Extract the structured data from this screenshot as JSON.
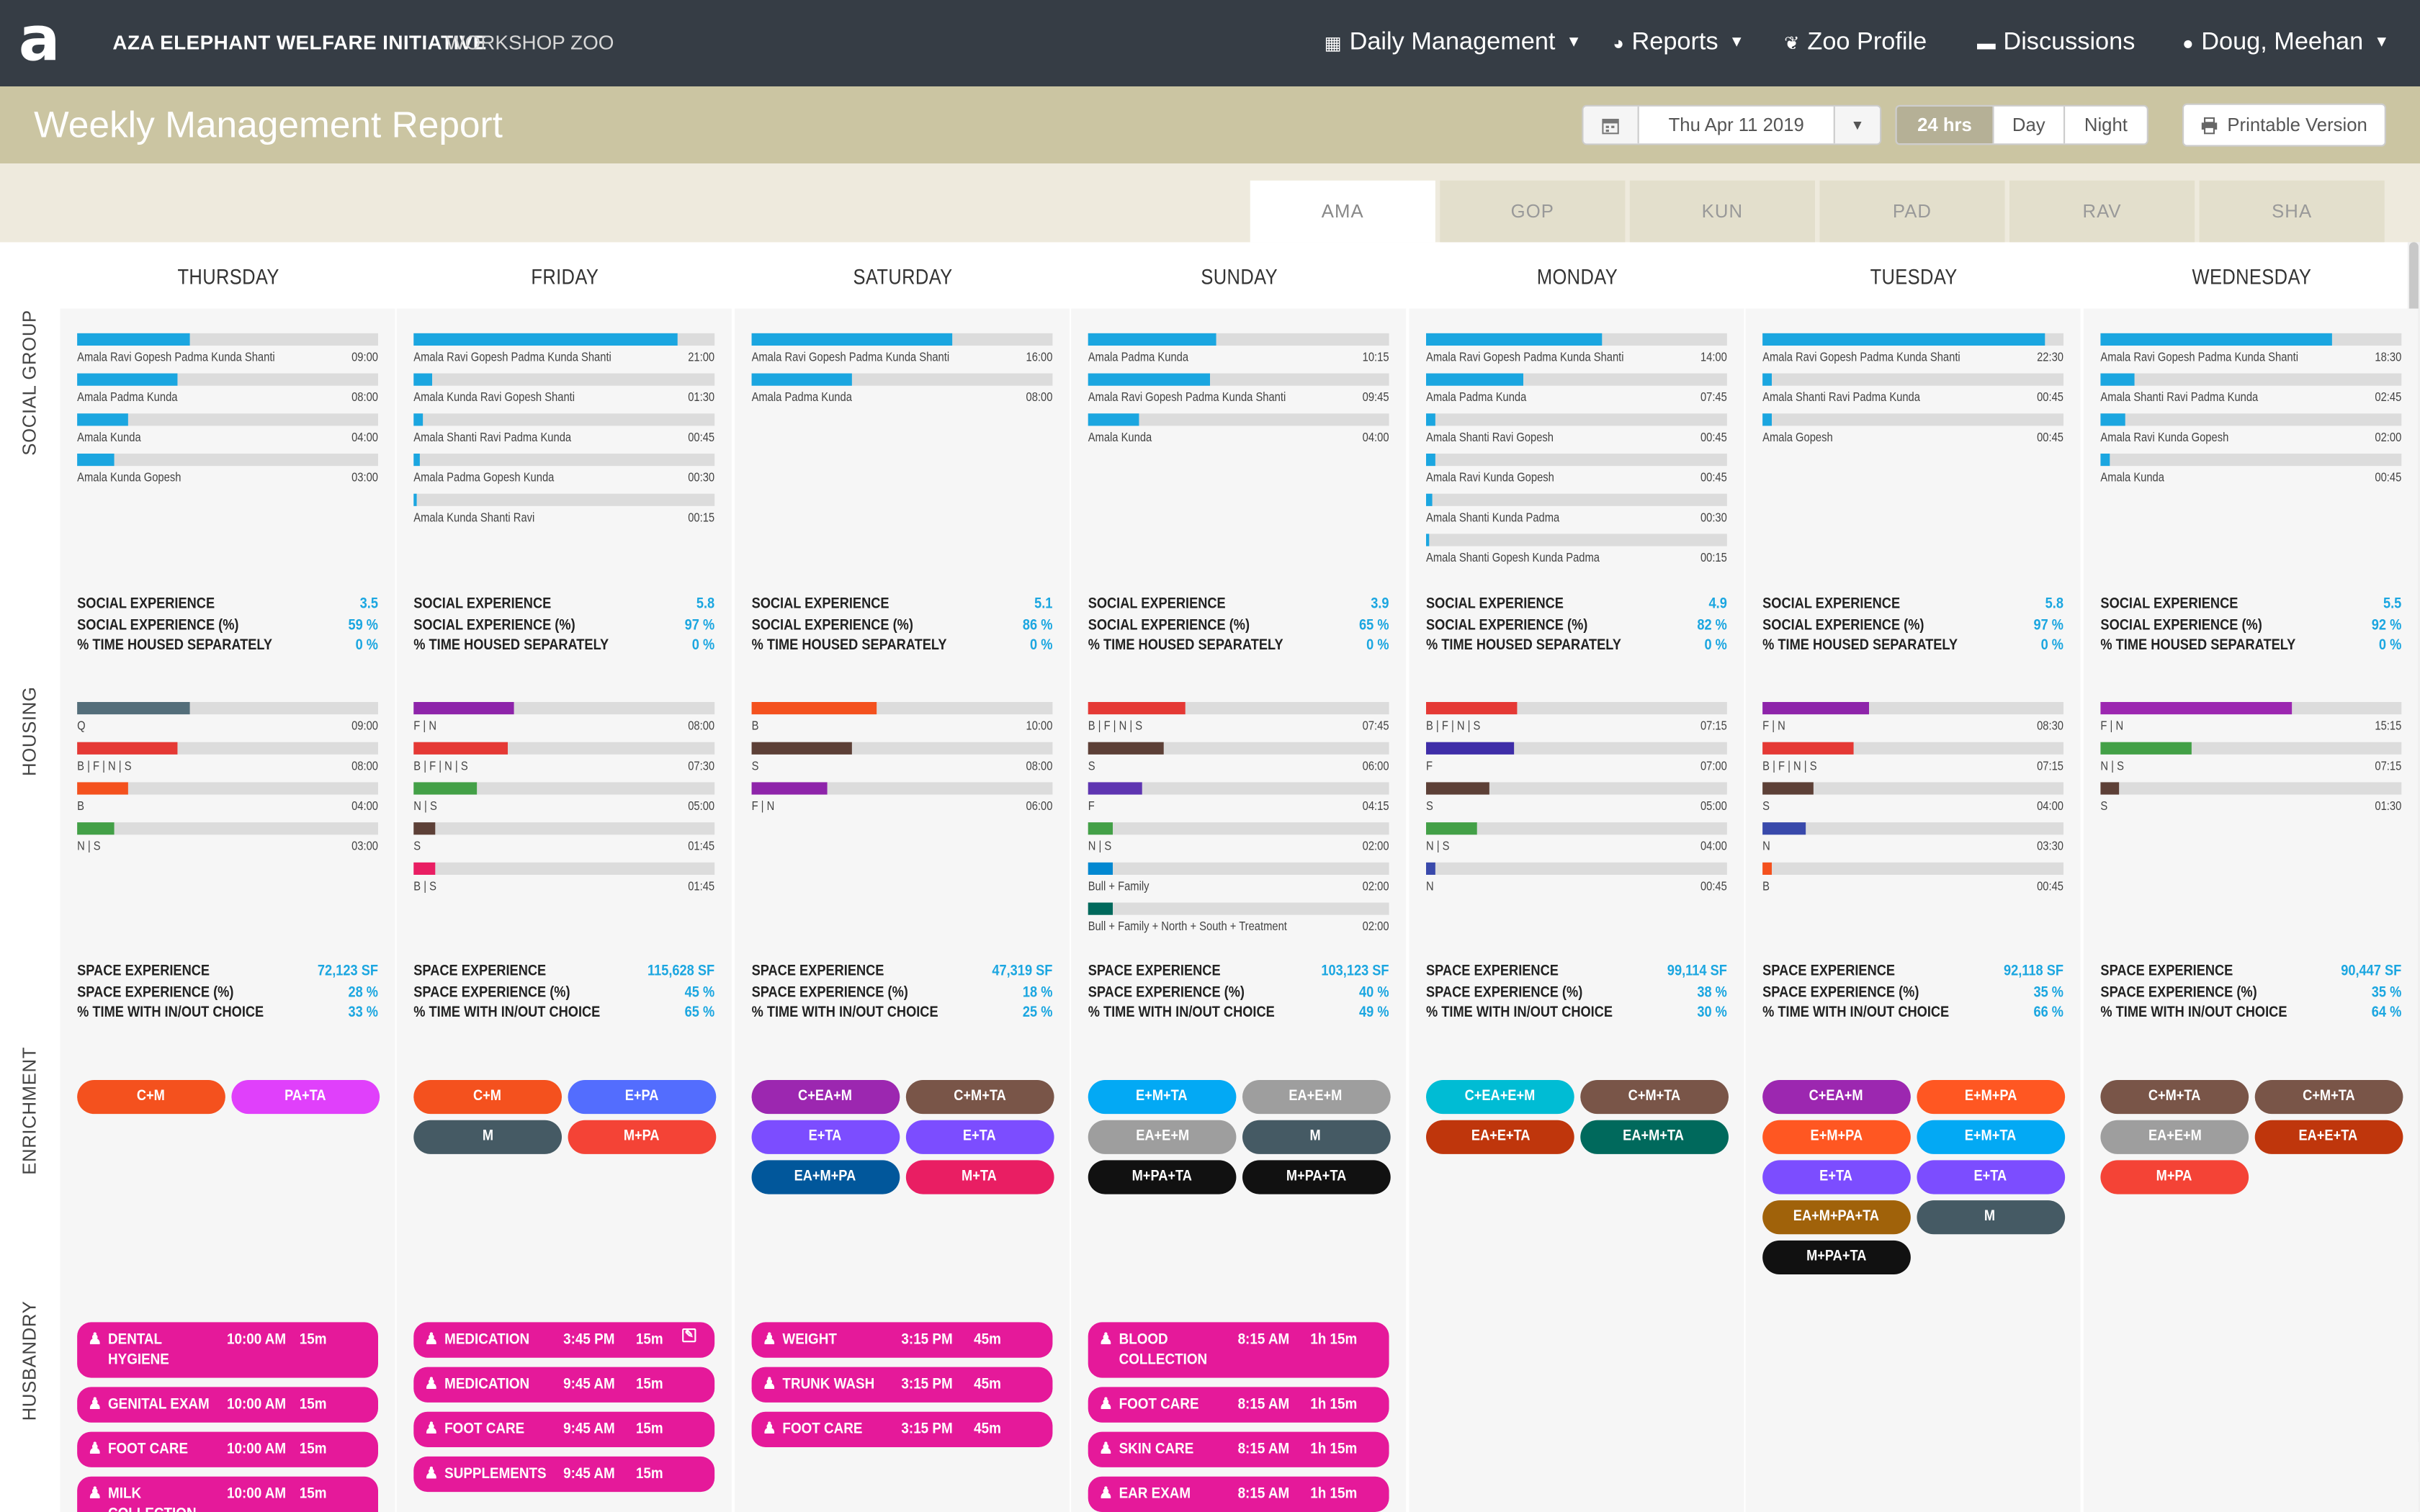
{
  "header": {
    "logo": "a",
    "org": "AZA ELEPHANT WELFARE INITIATIVE",
    "zoo": "WORKSHOP ZOO",
    "nav": [
      {
        "label": "Daily Management",
        "icon": "calendar-check-icon",
        "caret": true
      },
      {
        "label": "Reports",
        "icon": "pie-chart-icon",
        "caret": true
      },
      {
        "label": "Zoo Profile",
        "icon": "leaf-icon",
        "caret": false
      },
      {
        "label": "Discussions",
        "icon": "comments-icon",
        "caret": false
      },
      {
        "label": "Doug, Meehan",
        "icon": "user-icon",
        "caret": true
      }
    ]
  },
  "titlebar": {
    "title": "Weekly Management Report",
    "date": "Thu Apr 11 2019",
    "ranges": [
      "24 hrs",
      "Day",
      "Night"
    ],
    "active_range": "24 hrs",
    "print_label": "Printable Version"
  },
  "tabs": [
    "AMA",
    "GOP",
    "KUN",
    "PAD",
    "RAV",
    "SHA"
  ],
  "active_tab": "AMA",
  "sections": [
    "SOCIAL GROUP",
    "HOUSING",
    "ENRICHMENT",
    "HUSBANDRY"
  ],
  "colors": {
    "accent_blue": "#1ba6e0",
    "husbandry_pink": "#e5199a",
    "header_dark": "#363d45",
    "titlebar_tan": "#cbc5a2"
  },
  "social_labels": [
    "SOCIAL EXPERIENCE",
    "SOCIAL EXPERIENCE (%)",
    "% TIME HOUSED SEPARATELY"
  ],
  "space_labels": [
    "SPACE EXPERIENCE",
    "SPACE EXPERIENCE (%)",
    "% TIME WITH IN/OUT CHOICE"
  ],
  "days": [
    {
      "name": "THURSDAY",
      "social": [
        {
          "label": "Amala Ravi Gopesh Padma Kunda Shanti",
          "time": "09:00",
          "pct": 37.5
        },
        {
          "label": "Amala Padma Kunda",
          "time": "08:00",
          "pct": 33.3
        },
        {
          "label": "Amala Kunda",
          "time": "04:00",
          "pct": 16.7
        },
        {
          "label": "Amala Kunda Gopesh",
          "time": "03:00",
          "pct": 12.5
        }
      ],
      "social_stats": [
        "3.5",
        "59 %",
        "0 %"
      ],
      "housing": [
        {
          "label": "Q",
          "time": "09:00",
          "pct": 37.5,
          "color": "#546e7a"
        },
        {
          "label": "B | F | N | S",
          "time": "08:00",
          "pct": 33.3,
          "color": "#e53935"
        },
        {
          "label": "B",
          "time": "04:00",
          "pct": 16.7,
          "color": "#f4511e"
        },
        {
          "label": "N | S",
          "time": "03:00",
          "pct": 12.5,
          "color": "#43a047"
        }
      ],
      "space_stats": [
        "72,123 SF",
        "28 %",
        "33 %"
      ],
      "enrichment": [
        {
          "label": "C+M",
          "color": "#f4511e"
        },
        {
          "label": "PA+TA",
          "color": "#e040fb"
        }
      ],
      "husbandry": [
        {
          "name": "DENTAL HYGIENE",
          "time": "10:00 AM",
          "dur": "15m",
          "tall": true
        },
        {
          "name": "GENITAL EXAM",
          "time": "10:00 AM",
          "dur": "15m"
        },
        {
          "name": "FOOT CARE",
          "time": "10:00 AM",
          "dur": "15m"
        },
        {
          "name": "MILK COLLECTION",
          "time": "10:00 AM",
          "dur": "15m",
          "tall": true
        }
      ]
    },
    {
      "name": "FRIDAY",
      "social": [
        {
          "label": "Amala Ravi Gopesh Padma Kunda Shanti",
          "time": "21:00",
          "pct": 87.5
        },
        {
          "label": "Amala Kunda Ravi Gopesh Shanti",
          "time": "01:30",
          "pct": 6.3
        },
        {
          "label": "Amala Shanti Ravi Padma Kunda",
          "time": "00:45",
          "pct": 3.1
        },
        {
          "label": "Amala Padma Gopesh Kunda",
          "time": "00:30",
          "pct": 2.1
        },
        {
          "label": "Amala Kunda Shanti Ravi",
          "time": "00:15",
          "pct": 1.0
        }
      ],
      "social_stats": [
        "5.8",
        "97 %",
        "0 %"
      ],
      "housing": [
        {
          "label": "F | N",
          "time": "08:00",
          "pct": 33.3,
          "color": "#8e24aa"
        },
        {
          "label": "B | F | N | S",
          "time": "07:30",
          "pct": 31.3,
          "color": "#e53935"
        },
        {
          "label": "N | S",
          "time": "05:00",
          "pct": 20.8,
          "color": "#43a047"
        },
        {
          "label": "S",
          "time": "01:45",
          "pct": 7.3,
          "color": "#5d4037"
        },
        {
          "label": "B | S",
          "time": "01:45",
          "pct": 7.3,
          "color": "#e91e63"
        }
      ],
      "space_stats": [
        "115,628 SF",
        "45 %",
        "65 %"
      ],
      "enrichment": [
        {
          "label": "C+M",
          "color": "#f4511e"
        },
        {
          "label": "E+PA",
          "color": "#536dfe"
        },
        {
          "label": "M",
          "color": "#455a64"
        },
        {
          "label": "M+PA",
          "color": "#f44336"
        }
      ],
      "husbandry": [
        {
          "name": "MEDICATION",
          "time": "3:45 PM",
          "dur": "15m",
          "edit": true
        },
        {
          "name": "MEDICATION",
          "time": "9:45 AM",
          "dur": "15m"
        },
        {
          "name": "FOOT CARE",
          "time": "9:45 AM",
          "dur": "15m"
        },
        {
          "name": "SUPPLEMENTS",
          "time": "9:45 AM",
          "dur": "15m"
        }
      ]
    },
    {
      "name": "SATURDAY",
      "social": [
        {
          "label": "Amala Ravi Gopesh Padma Kunda Shanti",
          "time": "16:00",
          "pct": 66.7
        },
        {
          "label": "Amala Padma Kunda",
          "time": "08:00",
          "pct": 33.3
        }
      ],
      "social_stats": [
        "5.1",
        "86 %",
        "0 %"
      ],
      "housing": [
        {
          "label": "B",
          "time": "10:00",
          "pct": 41.7,
          "color": "#f4511e"
        },
        {
          "label": "S",
          "time": "08:00",
          "pct": 33.3,
          "color": "#5d4037"
        },
        {
          "label": "F | N",
          "time": "06:00",
          "pct": 25.0,
          "color": "#8e24aa"
        }
      ],
      "space_stats": [
        "47,319 SF",
        "18 %",
        "25 %"
      ],
      "enrichment": [
        {
          "label": "C+EA+M",
          "color": "#9c27b0"
        },
        {
          "label": "C+M+TA",
          "color": "#795548"
        },
        {
          "label": "E+TA",
          "color": "#7c4dff"
        },
        {
          "label": "E+TA",
          "color": "#7c4dff"
        },
        {
          "label": "EA+M+PA",
          "color": "#01579b"
        },
        {
          "label": "M+TA",
          "color": "#e91e63"
        }
      ],
      "husbandry": [
        {
          "name": "WEIGHT",
          "time": "3:15 PM",
          "dur": "45m"
        },
        {
          "name": "TRUNK WASH",
          "time": "3:15 PM",
          "dur": "45m"
        },
        {
          "name": "FOOT CARE",
          "time": "3:15 PM",
          "dur": "45m"
        }
      ]
    },
    {
      "name": "SUNDAY",
      "social": [
        {
          "label": "Amala Padma Kunda",
          "time": "10:15",
          "pct": 42.7
        },
        {
          "label": "Amala Ravi Gopesh Padma Kunda Shanti",
          "time": "09:45",
          "pct": 40.6
        },
        {
          "label": "Amala Kunda",
          "time": "04:00",
          "pct": 16.7
        }
      ],
      "social_stats": [
        "3.9",
        "65 %",
        "0 %"
      ],
      "housing": [
        {
          "label": "B | F | N | S",
          "time": "07:45",
          "pct": 32.3,
          "color": "#e53935"
        },
        {
          "label": "S",
          "time": "06:00",
          "pct": 25.0,
          "color": "#5d4037"
        },
        {
          "label": "F",
          "time": "04:15",
          "pct": 17.7,
          "color": "#5e35b1"
        },
        {
          "label": "N | S",
          "time": "02:00",
          "pct": 8.3,
          "color": "#43a047"
        },
        {
          "label": "Bull + Family",
          "time": "02:00",
          "pct": 8.3,
          "color": "#0288d1"
        },
        {
          "label": "Bull + Family + North + South + Treatment",
          "time": "02:00",
          "pct": 8.3,
          "color": "#00695c"
        }
      ],
      "space_stats": [
        "103,123 SF",
        "40 %",
        "49 %"
      ],
      "enrichment": [
        {
          "label": "E+M+TA",
          "color": "#03a9f4"
        },
        {
          "label": "EA+E+M",
          "color": "#9e9e9e"
        },
        {
          "label": "EA+E+M",
          "color": "#9e9e9e"
        },
        {
          "label": "M",
          "color": "#455a64"
        },
        {
          "label": "M+PA+TA",
          "color": "#111111"
        },
        {
          "label": "M+PA+TA",
          "color": "#111111"
        }
      ],
      "husbandry": [
        {
          "name": "BLOOD COLLECTION",
          "time": "8:15 AM",
          "dur": "1h 15m",
          "tall": true
        },
        {
          "name": "FOOT CARE",
          "time": "8:15 AM",
          "dur": "1h 15m"
        },
        {
          "name": "SKIN CARE",
          "time": "8:15 AM",
          "dur": "1h 15m"
        },
        {
          "name": "EAR EXAM",
          "time": "8:15 AM",
          "dur": "1h 15m"
        }
      ]
    },
    {
      "name": "MONDAY",
      "social": [
        {
          "label": "Amala Ravi Gopesh Padma Kunda Shanti",
          "time": "14:00",
          "pct": 58.3
        },
        {
          "label": "Amala Padma Kunda",
          "time": "07:45",
          "pct": 32.3
        },
        {
          "label": "Amala Shanti Ravi Gopesh",
          "time": "00:45",
          "pct": 3.1
        },
        {
          "label": "Amala Ravi Kunda Gopesh",
          "time": "00:45",
          "pct": 3.1
        },
        {
          "label": "Amala Shanti Kunda Padma",
          "time": "00:30",
          "pct": 2.1
        },
        {
          "label": "Amala Shanti Gopesh Kunda Padma",
          "time": "00:15",
          "pct": 1.0
        }
      ],
      "social_stats": [
        "4.9",
        "82 %",
        "0 %"
      ],
      "housing": [
        {
          "label": "B | F | N | S",
          "time": "07:15",
          "pct": 30.2,
          "color": "#e53935"
        },
        {
          "label": "F",
          "time": "07:00",
          "pct": 29.2,
          "color": "#3f2ea8"
        },
        {
          "label": "S",
          "time": "05:00",
          "pct": 20.8,
          "color": "#5d4037"
        },
        {
          "label": "N | S",
          "time": "04:00",
          "pct": 16.7,
          "color": "#43a047"
        },
        {
          "label": "N",
          "time": "00:45",
          "pct": 3.1,
          "color": "#3949ab"
        }
      ],
      "space_stats": [
        "99,114 SF",
        "38 %",
        "30 %"
      ],
      "enrichment": [
        {
          "label": "C+EA+E+M",
          "color": "#00bcd4"
        },
        {
          "label": "C+M+TA",
          "color": "#795548"
        },
        {
          "label": "EA+E+TA",
          "color": "#bf360c"
        },
        {
          "label": "EA+M+TA",
          "color": "#00695c"
        }
      ],
      "husbandry": []
    },
    {
      "name": "TUESDAY",
      "social": [
        {
          "label": "Amala Ravi Gopesh Padma Kunda Shanti",
          "time": "22:30",
          "pct": 93.8
        },
        {
          "label": "Amala Shanti Ravi Padma Kunda",
          "time": "00:45",
          "pct": 3.1
        },
        {
          "label": "Amala Gopesh",
          "time": "00:45",
          "pct": 3.1
        }
      ],
      "social_stats": [
        "5.8",
        "97 %",
        "0 %"
      ],
      "housing": [
        {
          "label": "F | N",
          "time": "08:30",
          "pct": 35.4,
          "color": "#8e24aa"
        },
        {
          "label": "B | F | N | S",
          "time": "07:15",
          "pct": 30.2,
          "color": "#e53935"
        },
        {
          "label": "S",
          "time": "04:00",
          "pct": 16.7,
          "color": "#5d4037"
        },
        {
          "label": "N",
          "time": "03:30",
          "pct": 14.6,
          "color": "#3949ab"
        },
        {
          "label": "B",
          "time": "00:45",
          "pct": 3.1,
          "color": "#f4511e"
        }
      ],
      "space_stats": [
        "92,118 SF",
        "35 %",
        "66 %"
      ],
      "enrichment": [
        {
          "label": "C+EA+M",
          "color": "#9c27b0"
        },
        {
          "label": "E+M+PA",
          "color": "#ff5722"
        },
        {
          "label": "E+M+PA",
          "color": "#ff5722"
        },
        {
          "label": "E+M+TA",
          "color": "#03a9f4"
        },
        {
          "label": "E+TA",
          "color": "#7c4dff"
        },
        {
          "label": "E+TA",
          "color": "#7c4dff"
        },
        {
          "label": "EA+M+PA+TA",
          "color": "#a0620a"
        },
        {
          "label": "M",
          "color": "#455a64"
        },
        {
          "label": "M+PA+TA",
          "color": "#111111"
        }
      ],
      "husbandry": []
    },
    {
      "name": "WEDNESDAY",
      "social": [
        {
          "label": "Amala Ravi Gopesh Padma Kunda Shanti",
          "time": "18:30",
          "pct": 77.1
        },
        {
          "label": "Amala Shanti Ravi Padma Kunda",
          "time": "02:45",
          "pct": 11.5
        },
        {
          "label": "Amala Ravi Kunda Gopesh",
          "time": "02:00",
          "pct": 8.3
        },
        {
          "label": "Amala Kunda",
          "time": "00:45",
          "pct": 3.1
        }
      ],
      "social_stats": [
        "5.5",
        "92 %",
        "0 %"
      ],
      "housing": [
        {
          "label": "F | N",
          "time": "15:15",
          "pct": 63.5,
          "color": "#9c27b0"
        },
        {
          "label": "N | S",
          "time": "07:15",
          "pct": 30.2,
          "color": "#43a047"
        },
        {
          "label": "S",
          "time": "01:30",
          "pct": 6.3,
          "color": "#5d4037"
        }
      ],
      "space_stats": [
        "90,447 SF",
        "35 %",
        "64 %"
      ],
      "enrichment": [
        {
          "label": "C+M+TA",
          "color": "#795548"
        },
        {
          "label": "C+M+TA",
          "color": "#795548"
        },
        {
          "label": "EA+E+M",
          "color": "#9e9e9e"
        },
        {
          "label": "EA+E+TA",
          "color": "#bf360c"
        },
        {
          "label": "M+PA",
          "color": "#f44336"
        }
      ],
      "husbandry": []
    }
  ]
}
